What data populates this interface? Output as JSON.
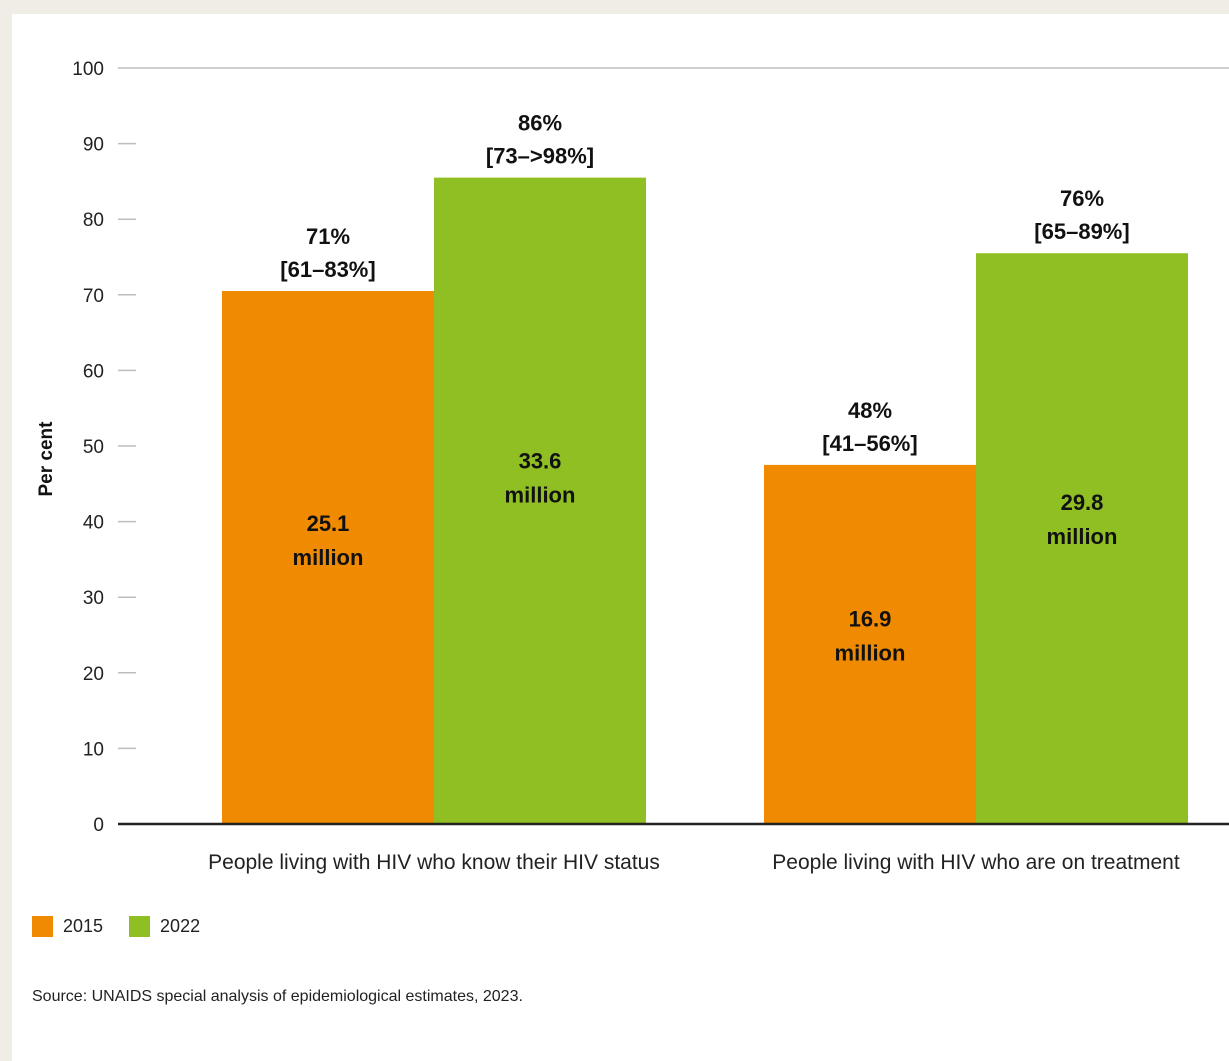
{
  "chart_data": {
    "type": "bar",
    "ylabel": "Per cent",
    "ylim": [
      0,
      100
    ],
    "yticks": [
      0,
      10,
      20,
      30,
      40,
      50,
      60,
      70,
      80,
      90,
      100
    ],
    "categories": [
      "People living with HIV who know their HIV status",
      "People living with HIV who are on treatment"
    ],
    "series": [
      {
        "name": "2015",
        "color": "#f08a00",
        "values": [
          70.5,
          47.5
        ],
        "labels": [
          "71%",
          "48%"
        ],
        "ranges": [
          "[61–83%]",
          "[41–56%]"
        ],
        "inner": [
          [
            "25.1",
            "million"
          ],
          [
            "16.9",
            "million"
          ]
        ]
      },
      {
        "name": "2022",
        "color": "#8fbf23",
        "values": [
          85.5,
          75.5
        ],
        "labels": [
          "86%",
          "76%"
        ],
        "ranges": [
          "[73–>98%]",
          "[65–89%]"
        ],
        "inner": [
          [
            "33.6",
            "million"
          ],
          [
            "29.8",
            "million"
          ]
        ]
      }
    ],
    "legend_position": "bottom-left",
    "grid": false
  },
  "source": "Source: UNAIDS special analysis of epidemiological estimates, 2023."
}
